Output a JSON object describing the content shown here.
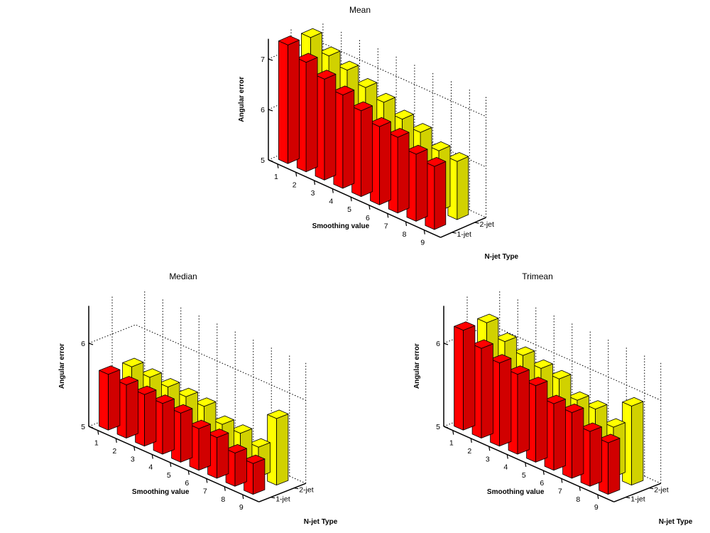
{
  "chart_data": [
    {
      "type": "bar",
      "title": "Mean",
      "xlabel": "Smoothing value",
      "ylabel": "Angular error",
      "zlabel": "N-jet Type",
      "categories": [
        "1",
        "2",
        "3",
        "4",
        "5",
        "6",
        "7",
        "8",
        "9"
      ],
      "yticks": [
        "5",
        "6",
        "7"
      ],
      "ylim": [
        5,
        7.4
      ],
      "series": [
        {
          "name": "1-jet",
          "color": "#ff0000",
          "values": [
            7.35,
            7.17,
            7.0,
            6.85,
            6.7,
            6.55,
            6.5,
            6.33,
            6.25
          ]
        },
        {
          "name": "2-jet",
          "color": "#ffff00",
          "values": [
            7.3,
            7.1,
            6.98,
            6.8,
            6.67,
            6.5,
            6.4,
            6.2,
            6.15
          ]
        }
      ]
    },
    {
      "type": "bar",
      "title": "Median",
      "xlabel": "Smoothing value",
      "ylabel": "Angular error",
      "zlabel": "N-jet Type",
      "categories": [
        "1",
        "2",
        "3",
        "4",
        "5",
        "6",
        "7",
        "8",
        "9"
      ],
      "yticks": [
        "5",
        "6"
      ],
      "ylim": [
        5,
        6.45
      ],
      "series": [
        {
          "name": "1-jet",
          "color": "#ff0000",
          "values": [
            5.67,
            5.64,
            5.62,
            5.61,
            5.59,
            5.5,
            5.49,
            5.4,
            5.37
          ]
        },
        {
          "name": "2-jet",
          "color": "#ffff00",
          "values": [
            5.65,
            5.62,
            5.6,
            5.58,
            5.56,
            5.44,
            5.43,
            5.36,
            5.8
          ]
        }
      ]
    },
    {
      "type": "bar",
      "title": "Trimean",
      "xlabel": "Smoothing value",
      "ylabel": "Angular error",
      "zlabel": "N-jet Type",
      "categories": [
        "1",
        "2",
        "3",
        "4",
        "5",
        "6",
        "7",
        "8",
        "9"
      ],
      "yticks": [
        "5",
        "6"
      ],
      "ylim": [
        5,
        6.45
      ],
      "series": [
        {
          "name": "1-jet",
          "color": "#ff0000",
          "values": [
            6.2,
            6.08,
            6.0,
            5.96,
            5.92,
            5.8,
            5.79,
            5.66,
            5.62
          ]
        },
        {
          "name": "2-jet",
          "color": "#ffff00",
          "values": [
            6.18,
            6.05,
            5.98,
            5.92,
            5.89,
            5.73,
            5.72,
            5.6,
            5.95
          ]
        }
      ]
    }
  ]
}
